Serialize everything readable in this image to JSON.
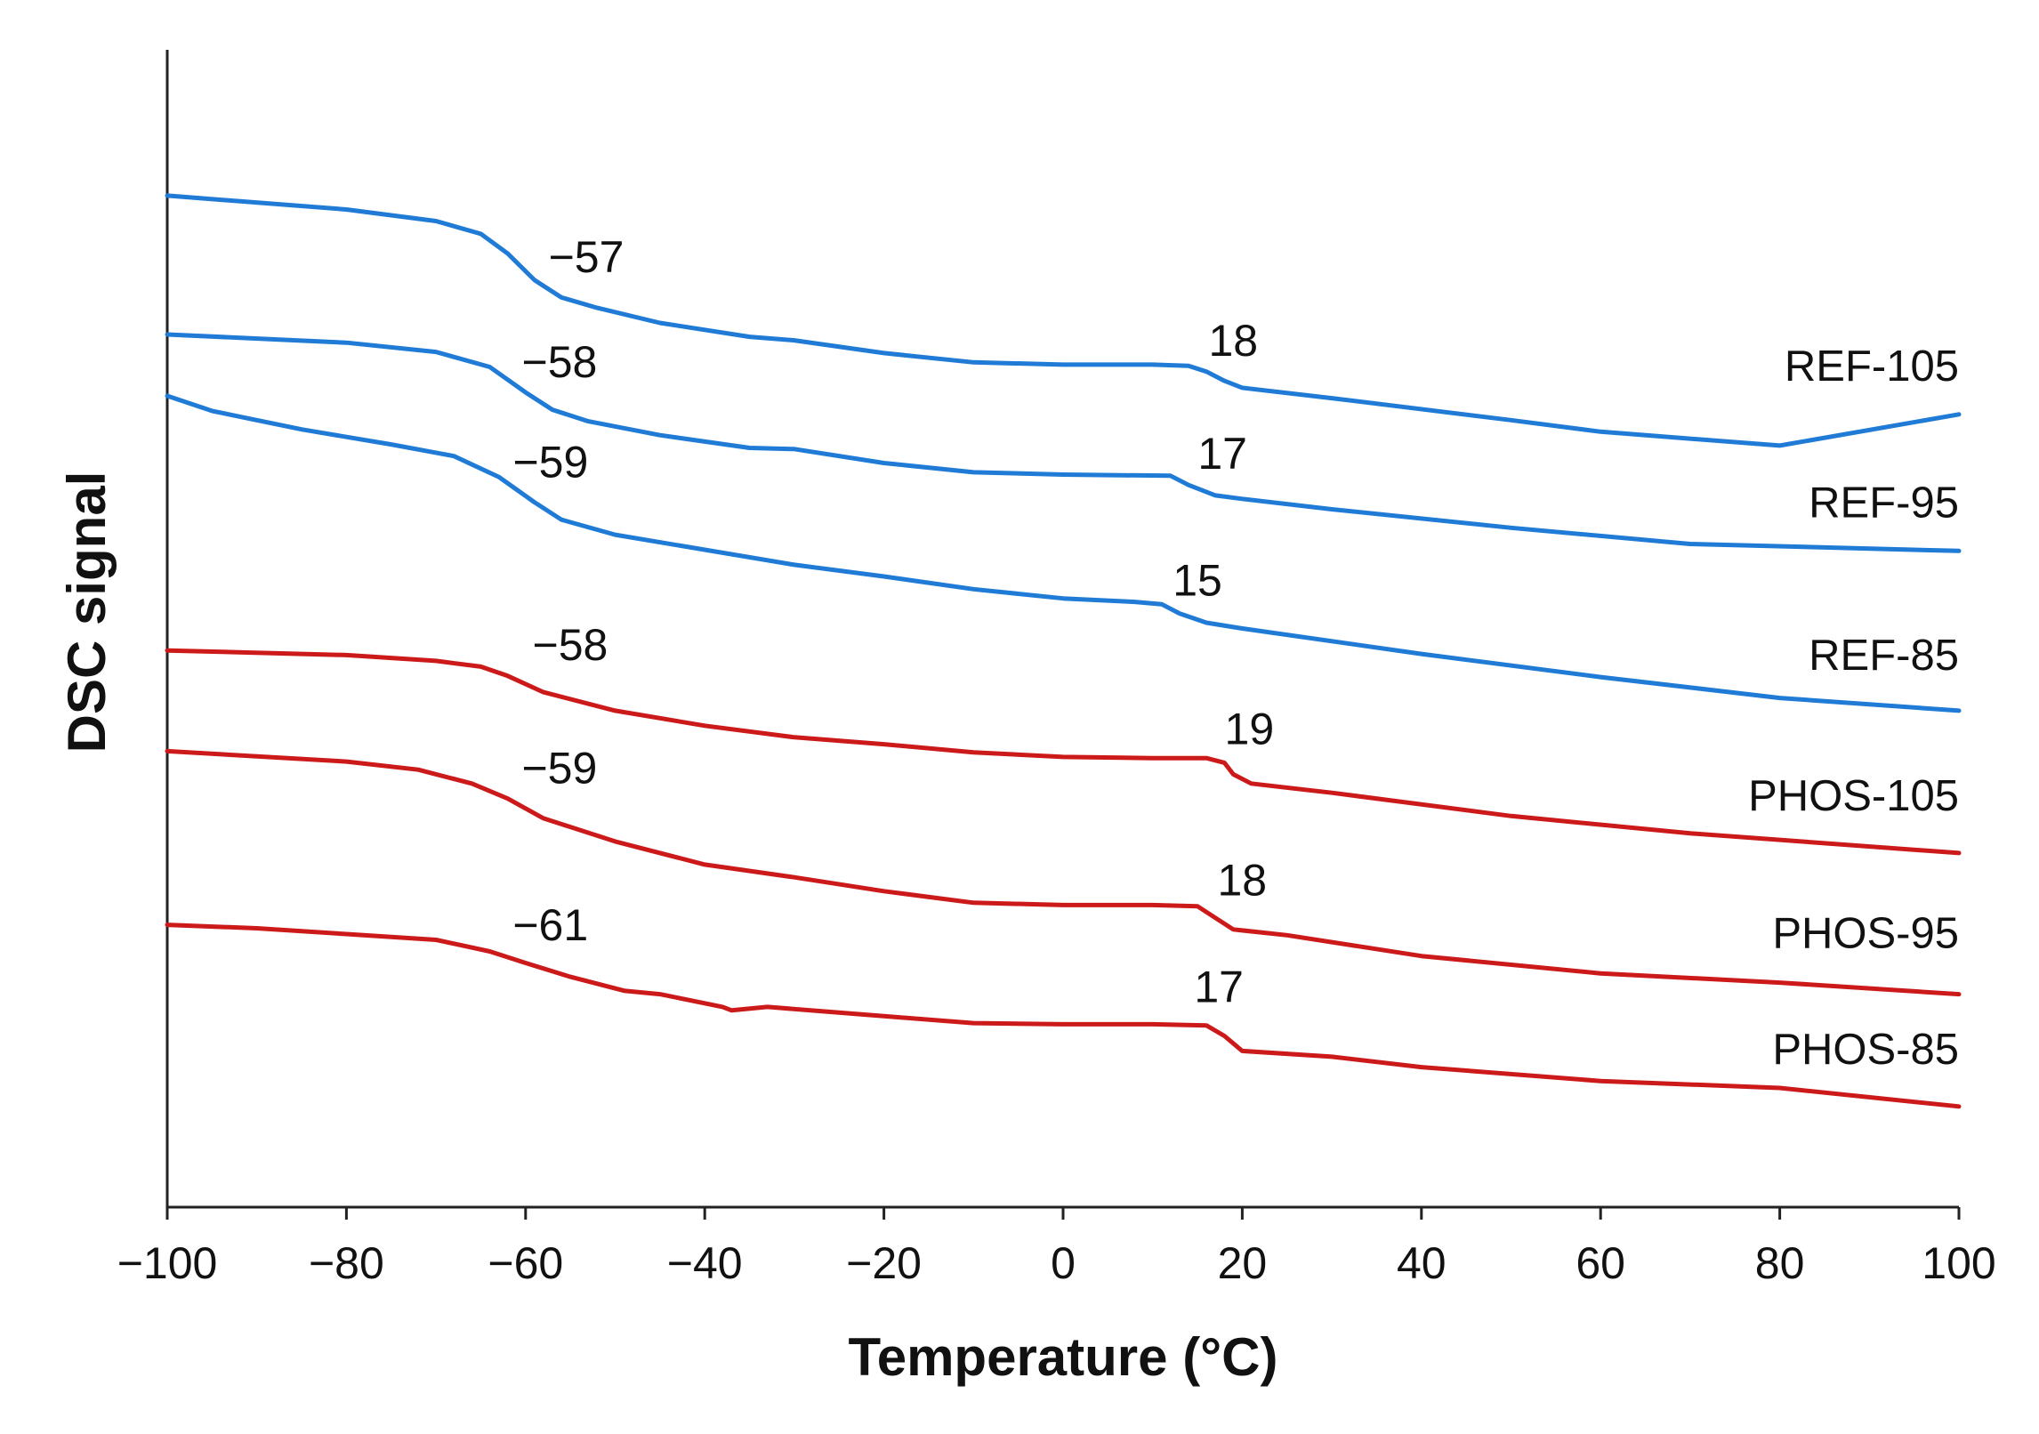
{
  "chart_data": {
    "type": "line",
    "title": "",
    "xlabel": "Temperature (°C)",
    "ylabel": "DSC signal",
    "xlim": [
      -100,
      100
    ],
    "xticks": [
      -100,
      -80,
      -60,
      -40,
      -20,
      0,
      20,
      40,
      60,
      80,
      100
    ],
    "xtick_labels": [
      "−100",
      "−80",
      "−60",
      "−40",
      "−20",
      "0",
      "20",
      "40",
      "60",
      "80",
      "100"
    ],
    "yticks": "none",
    "ylim": [
      0,
      100
    ],
    "grid": false,
    "legend": "labels at right end of each curve",
    "series": [
      {
        "name": "REF-105",
        "color": "#1f7bd6",
        "tg1": -57,
        "tg1_label": "−57",
        "tg2": 18,
        "tg2_label": "18",
        "points": [
          [
            -100,
            87.4
          ],
          [
            -80,
            86.2
          ],
          [
            -70,
            85.2
          ],
          [
            -65,
            84.1
          ],
          [
            -62,
            82.4
          ],
          [
            -59,
            80.1
          ],
          [
            -56,
            78.6
          ],
          [
            -52,
            77.7
          ],
          [
            -45,
            76.4
          ],
          [
            -35,
            75.2
          ],
          [
            -30,
            74.9
          ],
          [
            -20,
            73.8
          ],
          [
            -10,
            73.0
          ],
          [
            0,
            72.8
          ],
          [
            10,
            72.8
          ],
          [
            14,
            72.7
          ],
          [
            16,
            72.2
          ],
          [
            18,
            71.4
          ],
          [
            20,
            70.8
          ],
          [
            30,
            69.9
          ],
          [
            50,
            68.0
          ],
          [
            60,
            67.0
          ],
          [
            80,
            65.8
          ],
          [
            100,
            68.5
          ]
        ]
      },
      {
        "name": "REF-95",
        "color": "#1f7bd6",
        "tg1": -58,
        "tg1_label": "−58",
        "tg2": 17,
        "tg2_label": "17",
        "points": [
          [
            -100,
            75.4
          ],
          [
            -80,
            74.7
          ],
          [
            -70,
            73.9
          ],
          [
            -64,
            72.6
          ],
          [
            -60,
            70.4
          ],
          [
            -57,
            68.9
          ],
          [
            -53,
            67.9
          ],
          [
            -45,
            66.7
          ],
          [
            -35,
            65.6
          ],
          [
            -30,
            65.5
          ],
          [
            -20,
            64.3
          ],
          [
            -10,
            63.5
          ],
          [
            0,
            63.3
          ],
          [
            12,
            63.2
          ],
          [
            14,
            62.4
          ],
          [
            17,
            61.5
          ],
          [
            20,
            61.2
          ],
          [
            30,
            60.3
          ],
          [
            50,
            58.7
          ],
          [
            70,
            57.3
          ],
          [
            100,
            56.7
          ]
        ]
      },
      {
        "name": "REF-85",
        "color": "#1f7bd6",
        "tg1": -59,
        "tg1_label": "−59",
        "tg2": 15,
        "tg2_label": "15",
        "points": [
          [
            -100,
            70.1
          ],
          [
            -95,
            68.8
          ],
          [
            -85,
            67.2
          ],
          [
            -75,
            65.9
          ],
          [
            -68,
            64.9
          ],
          [
            -63,
            63.1
          ],
          [
            -59,
            60.9
          ],
          [
            -56,
            59.4
          ],
          [
            -50,
            58.1
          ],
          [
            -40,
            56.8
          ],
          [
            -30,
            55.5
          ],
          [
            -20,
            54.5
          ],
          [
            -10,
            53.4
          ],
          [
            0,
            52.6
          ],
          [
            8,
            52.3
          ],
          [
            11,
            52.1
          ],
          [
            13,
            51.3
          ],
          [
            16,
            50.5
          ],
          [
            20,
            50.0
          ],
          [
            40,
            47.8
          ],
          [
            60,
            45.8
          ],
          [
            80,
            44.0
          ],
          [
            100,
            42.9
          ]
        ]
      },
      {
        "name": "PHOS-105",
        "color": "#cc1a1a",
        "tg1": -58,
        "tg1_label": "−58",
        "tg2": 19,
        "tg2_label": "19",
        "points": [
          [
            -100,
            48.1
          ],
          [
            -80,
            47.7
          ],
          [
            -70,
            47.2
          ],
          [
            -65,
            46.7
          ],
          [
            -62,
            45.9
          ],
          [
            -58,
            44.5
          ],
          [
            -50,
            42.9
          ],
          [
            -40,
            41.6
          ],
          [
            -30,
            40.6
          ],
          [
            -20,
            40.0
          ],
          [
            -10,
            39.3
          ],
          [
            0,
            38.9
          ],
          [
            10,
            38.8
          ],
          [
            16,
            38.8
          ],
          [
            18,
            38.4
          ],
          [
            19,
            37.4
          ],
          [
            21,
            36.6
          ],
          [
            30,
            35.8
          ],
          [
            50,
            33.8
          ],
          [
            70,
            32.3
          ],
          [
            100,
            30.6
          ]
        ]
      },
      {
        "name": "PHOS-95",
        "color": "#cc1a1a",
        "tg1": -59,
        "tg1_label": "−59",
        "tg2": 18,
        "tg2_label": "18",
        "points": [
          [
            -100,
            39.4
          ],
          [
            -80,
            38.5
          ],
          [
            -72,
            37.8
          ],
          [
            -66,
            36.6
          ],
          [
            -62,
            35.3
          ],
          [
            -58,
            33.6
          ],
          [
            -50,
            31.6
          ],
          [
            -40,
            29.6
          ],
          [
            -30,
            28.5
          ],
          [
            -20,
            27.3
          ],
          [
            -10,
            26.3
          ],
          [
            0,
            26.1
          ],
          [
            10,
            26.1
          ],
          [
            15,
            26.0
          ],
          [
            17,
            25.0
          ],
          [
            19,
            24.0
          ],
          [
            25,
            23.5
          ],
          [
            40,
            21.7
          ],
          [
            60,
            20.2
          ],
          [
            80,
            19.4
          ],
          [
            100,
            18.4
          ]
        ]
      },
      {
        "name": "PHOS-85",
        "color": "#cc1a1a",
        "tg1": -61,
        "tg1_label": "−61",
        "tg2": 17,
        "tg2_label": "17",
        "points": [
          [
            -100,
            24.4
          ],
          [
            -90,
            24.1
          ],
          [
            -80,
            23.6
          ],
          [
            -70,
            23.1
          ],
          [
            -64,
            22.1
          ],
          [
            -60,
            21.1
          ],
          [
            -55,
            19.9
          ],
          [
            -49,
            18.7
          ],
          [
            -45,
            18.4
          ],
          [
            -38,
            17.3
          ],
          [
            -37,
            17.0
          ],
          [
            -33,
            17.3
          ],
          [
            -20,
            16.5
          ],
          [
            -10,
            15.9
          ],
          [
            0,
            15.8
          ],
          [
            10,
            15.8
          ],
          [
            16,
            15.7
          ],
          [
            18,
            14.8
          ],
          [
            20,
            13.5
          ],
          [
            30,
            13.0
          ],
          [
            40,
            12.1
          ],
          [
            60,
            10.9
          ],
          [
            80,
            10.3
          ],
          [
            100,
            8.7
          ]
        ]
      }
    ]
  }
}
